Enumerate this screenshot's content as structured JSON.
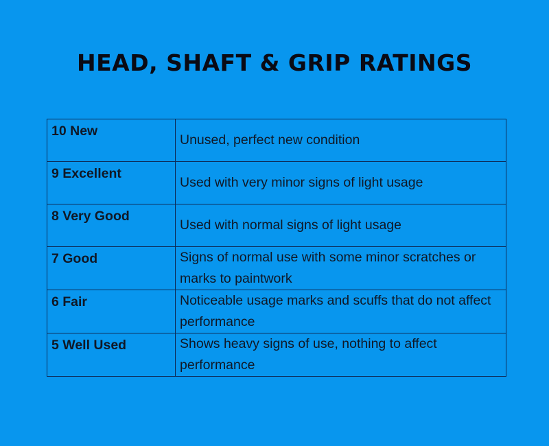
{
  "title": "HEAD, SHAFT & GRIP RATINGS",
  "colors": {
    "background": "#0896ee",
    "border": "#0d2a55",
    "text": "#101826"
  },
  "ratings": [
    {
      "label": "10 New",
      "description": "Unused, perfect new condition"
    },
    {
      "label": "9 Excellent",
      "description": "Used with very minor signs of light usage"
    },
    {
      "label": "8 Very Good",
      "description": "Used with normal signs of light usage"
    },
    {
      "label": "7 Good",
      "description": "Signs of normal use with some minor scratches or marks to paintwork"
    },
    {
      "label": "6 Fair",
      "description": "Noticeable usage marks and scuffs that do not affect performance"
    },
    {
      "label": "5 Well Used",
      "description": "Shows heavy signs of use, nothing to affect performance"
    }
  ]
}
